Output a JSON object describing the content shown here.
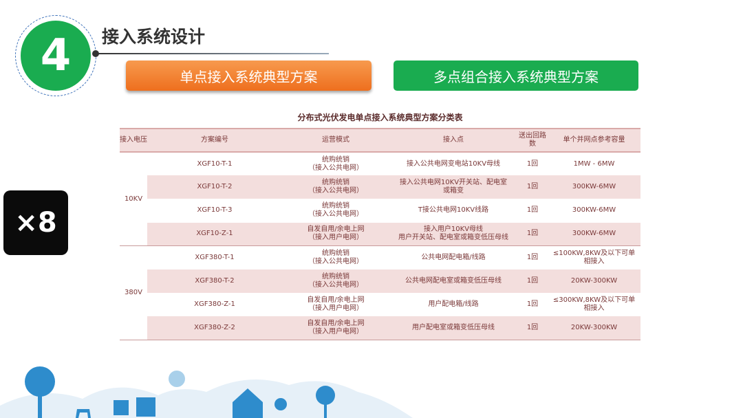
{
  "section": {
    "number": "4",
    "title": "接入系统设计"
  },
  "buttons": {
    "single": "单点接入系统典型方案",
    "multi": "多点组合接入系统典型方案"
  },
  "multiplier": "×8",
  "table": {
    "title": "分布式光伏发电单点接入系统典型方案分类表",
    "headers": [
      "接入电压",
      "方案编号",
      "运营模式",
      "接入点",
      "送出回路数",
      "单个并网点参考容量"
    ],
    "groups": [
      {
        "voltage": "10KV",
        "rows": [
          {
            "code": "XGF10-T-1",
            "mode": [
              "统购统销",
              "（接入公共电网）"
            ],
            "point": [
              "接入公共电网变电站10KV母线"
            ],
            "circuits": "1回",
            "capacity": [
              "1MW - 6MW"
            ]
          },
          {
            "code": "XGF10-T-2",
            "mode": [
              "统购统销",
              "（接入公共电网）"
            ],
            "point": [
              "接入公共电网10KV开关站、配电室",
              "或箱变"
            ],
            "circuits": "1回",
            "capacity": [
              "300KW-6MW"
            ]
          },
          {
            "code": "XGF10-T-3",
            "mode": [
              "统购统销",
              "（接入公共电网）"
            ],
            "point": [
              "T接公共电网10KV线路"
            ],
            "circuits": "1回",
            "capacity": [
              "300KW-6MW"
            ]
          },
          {
            "code": "XGF10-Z-1",
            "mode": [
              "自发自用/余电上网",
              "（接入用户电网）"
            ],
            "point": [
              "接入用户10KV母线",
              "用户开关站、配电室或箱变低压母线"
            ],
            "circuits": "1回",
            "capacity": [
              "300KW-6MW"
            ]
          }
        ]
      },
      {
        "voltage": "380V",
        "rows": [
          {
            "code": "XGF380-T-1",
            "mode": [
              "统购统销",
              "（接入公共电网）"
            ],
            "point": [
              "公共电网配电箱/线路"
            ],
            "circuits": "1回",
            "capacity": [
              "≤100KW,8KW及以下可单",
              "相接入"
            ]
          },
          {
            "code": "XGF380-T-2",
            "mode": [
              "统购统销",
              "（接入公共电网）"
            ],
            "point": [
              "公共电网配电室或箱变低压母线"
            ],
            "circuits": "1回",
            "capacity": [
              "20KW-300KW"
            ]
          },
          {
            "code": "XGF380-Z-1",
            "mode": [
              "自发自用/余电上网",
              "（接入用户电网）"
            ],
            "point": [
              "用户配电箱/线路"
            ],
            "circuits": "1回",
            "capacity": [
              "≤300KW,8KW及以下可单",
              "相接入"
            ]
          },
          {
            "code": "XGF380-Z-2",
            "mode": [
              "自发自用/余电上网",
              "（接入用户电网）"
            ],
            "point": [
              "用户配电室或箱变低压母线"
            ],
            "circuits": "1回",
            "capacity": [
              "20KW-300KW"
            ]
          }
        ]
      }
    ]
  },
  "colors": {
    "green": "#1aac50",
    "orange": "#ee6f1e",
    "row_tint": "#f3dedd",
    "landscape": "#2e8ccc"
  }
}
